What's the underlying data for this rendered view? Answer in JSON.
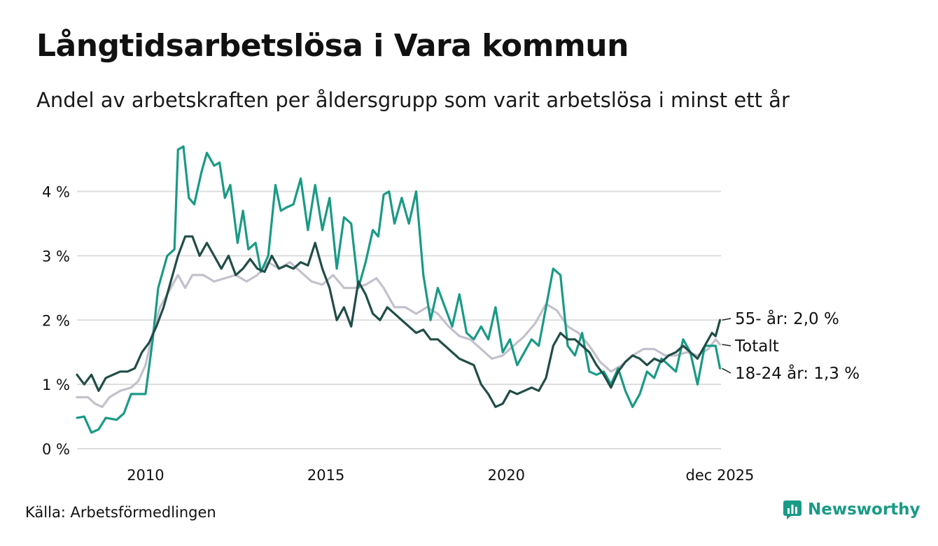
{
  "title": "Långtidsarbetslösa i Vara kommun",
  "subtitle": "Andel av arbetskraften per åldersgrupp som varit arbetslösa i minst ett år",
  "source": "Källa: Arbetsförmedlingen",
  "brand": "Newsworthy",
  "colors": {
    "total": "#c4c0cc",
    "young": "#1a9a86",
    "old": "#214d47",
    "grid": "#dddddd",
    "brand": "#1a9a86"
  },
  "chart_data": {
    "type": "line",
    "title": "Långtidsarbetslösa i Vara kommun",
    "xlabel": "",
    "ylabel": "",
    "x_range": [
      2008.1,
      2025.95
    ],
    "ylim": [
      0,
      4.8
    ],
    "y_ticks": [
      0,
      1,
      2,
      3,
      4
    ],
    "y_tick_labels": [
      "0 %",
      "1 %",
      "2 %",
      "3 %",
      "4 %"
    ],
    "x_ticks": [
      2010,
      2015,
      2020,
      2025.92
    ],
    "x_tick_labels": [
      "2010",
      "2015",
      "2020",
      "dec 2025"
    ],
    "grid": true,
    "series": [
      {
        "name": "Totalt",
        "label": "Totalt",
        "color": "#c4c0cc",
        "points": [
          [
            2008.1,
            0.8
          ],
          [
            2008.4,
            0.8
          ],
          [
            2008.6,
            0.7
          ],
          [
            2008.8,
            0.65
          ],
          [
            2009.0,
            0.8
          ],
          [
            2009.3,
            0.9
          ],
          [
            2009.6,
            0.95
          ],
          [
            2009.8,
            1.05
          ],
          [
            2010.0,
            1.3
          ],
          [
            2010.2,
            1.8
          ],
          [
            2010.4,
            2.2
          ],
          [
            2010.7,
            2.5
          ],
          [
            2010.9,
            2.7
          ],
          [
            2011.1,
            2.5
          ],
          [
            2011.3,
            2.7
          ],
          [
            2011.6,
            2.7
          ],
          [
            2011.9,
            2.6
          ],
          [
            2012.2,
            2.65
          ],
          [
            2012.5,
            2.7
          ],
          [
            2012.8,
            2.6
          ],
          [
            2013.1,
            2.7
          ],
          [
            2013.4,
            2.9
          ],
          [
            2013.7,
            2.8
          ],
          [
            2014.0,
            2.9
          ],
          [
            2014.3,
            2.75
          ],
          [
            2014.6,
            2.6
          ],
          [
            2014.9,
            2.55
          ],
          [
            2015.2,
            2.7
          ],
          [
            2015.5,
            2.5
          ],
          [
            2015.8,
            2.5
          ],
          [
            2016.1,
            2.55
          ],
          [
            2016.4,
            2.65
          ],
          [
            2016.6,
            2.5
          ],
          [
            2016.9,
            2.2
          ],
          [
            2017.2,
            2.2
          ],
          [
            2017.5,
            2.1
          ],
          [
            2017.8,
            2.2
          ],
          [
            2018.1,
            2.1
          ],
          [
            2018.4,
            1.9
          ],
          [
            2018.7,
            1.75
          ],
          [
            2019.0,
            1.7
          ],
          [
            2019.3,
            1.55
          ],
          [
            2019.6,
            1.4
          ],
          [
            2019.9,
            1.45
          ],
          [
            2020.2,
            1.6
          ],
          [
            2020.5,
            1.75
          ],
          [
            2020.8,
            1.95
          ],
          [
            2021.1,
            2.25
          ],
          [
            2021.4,
            2.15
          ],
          [
            2021.7,
            1.9
          ],
          [
            2022.0,
            1.8
          ],
          [
            2022.3,
            1.6
          ],
          [
            2022.6,
            1.35
          ],
          [
            2022.9,
            1.2
          ],
          [
            2023.2,
            1.3
          ],
          [
            2023.5,
            1.45
          ],
          [
            2023.8,
            1.55
          ],
          [
            2024.1,
            1.55
          ],
          [
            2024.4,
            1.45
          ],
          [
            2024.7,
            1.45
          ],
          [
            2025.0,
            1.5
          ],
          [
            2025.3,
            1.45
          ],
          [
            2025.6,
            1.55
          ],
          [
            2025.8,
            1.7
          ],
          [
            2025.92,
            1.62
          ]
        ]
      },
      {
        "name": "18-24 år",
        "label": "18-24 år: 1,3 %",
        "color": "#1a9a86",
        "points": [
          [
            2008.1,
            0.48
          ],
          [
            2008.3,
            0.5
          ],
          [
            2008.5,
            0.25
          ],
          [
            2008.7,
            0.3
          ],
          [
            2008.9,
            0.48
          ],
          [
            2009.2,
            0.45
          ],
          [
            2009.4,
            0.55
          ],
          [
            2009.6,
            0.85
          ],
          [
            2009.8,
            0.85
          ],
          [
            2010.0,
            0.85
          ],
          [
            2010.2,
            1.7
          ],
          [
            2010.35,
            2.5
          ],
          [
            2010.6,
            3.0
          ],
          [
            2010.8,
            3.1
          ],
          [
            2010.9,
            4.65
          ],
          [
            2011.05,
            4.7
          ],
          [
            2011.2,
            3.9
          ],
          [
            2011.35,
            3.8
          ],
          [
            2011.55,
            4.3
          ],
          [
            2011.7,
            4.6
          ],
          [
            2011.9,
            4.4
          ],
          [
            2012.05,
            4.45
          ],
          [
            2012.2,
            3.9
          ],
          [
            2012.35,
            4.1
          ],
          [
            2012.55,
            3.2
          ],
          [
            2012.7,
            3.7
          ],
          [
            2012.85,
            3.1
          ],
          [
            2013.05,
            3.2
          ],
          [
            2013.2,
            2.75
          ],
          [
            2013.4,
            3.0
          ],
          [
            2013.6,
            4.1
          ],
          [
            2013.75,
            3.7
          ],
          [
            2013.9,
            3.75
          ],
          [
            2014.1,
            3.8
          ],
          [
            2014.3,
            4.2
          ],
          [
            2014.5,
            3.4
          ],
          [
            2014.7,
            4.1
          ],
          [
            2014.9,
            3.4
          ],
          [
            2015.1,
            3.9
          ],
          [
            2015.3,
            2.8
          ],
          [
            2015.5,
            3.6
          ],
          [
            2015.7,
            3.5
          ],
          [
            2015.9,
            2.5
          ],
          [
            2016.1,
            2.9
          ],
          [
            2016.3,
            3.4
          ],
          [
            2016.45,
            3.3
          ],
          [
            2016.6,
            3.95
          ],
          [
            2016.75,
            4.0
          ],
          [
            2016.9,
            3.5
          ],
          [
            2017.1,
            3.9
          ],
          [
            2017.3,
            3.5
          ],
          [
            2017.5,
            4.0
          ],
          [
            2017.7,
            2.7
          ],
          [
            2017.9,
            2.0
          ],
          [
            2018.1,
            2.5
          ],
          [
            2018.3,
            2.2
          ],
          [
            2018.5,
            1.9
          ],
          [
            2018.7,
            2.4
          ],
          [
            2018.9,
            1.8
          ],
          [
            2019.1,
            1.7
          ],
          [
            2019.3,
            1.9
          ],
          [
            2019.5,
            1.7
          ],
          [
            2019.7,
            2.2
          ],
          [
            2019.9,
            1.5
          ],
          [
            2020.1,
            1.7
          ],
          [
            2020.3,
            1.3
          ],
          [
            2020.5,
            1.5
          ],
          [
            2020.7,
            1.7
          ],
          [
            2020.9,
            1.6
          ],
          [
            2021.1,
            2.2
          ],
          [
            2021.3,
            2.8
          ],
          [
            2021.5,
            2.7
          ],
          [
            2021.7,
            1.6
          ],
          [
            2021.9,
            1.45
          ],
          [
            2022.1,
            1.8
          ],
          [
            2022.3,
            1.2
          ],
          [
            2022.5,
            1.15
          ],
          [
            2022.7,
            1.2
          ],
          [
            2022.9,
            1.0
          ],
          [
            2023.1,
            1.25
          ],
          [
            2023.3,
            0.9
          ],
          [
            2023.5,
            0.65
          ],
          [
            2023.7,
            0.85
          ],
          [
            2023.9,
            1.2
          ],
          [
            2024.1,
            1.1
          ],
          [
            2024.3,
            1.4
          ],
          [
            2024.5,
            1.3
          ],
          [
            2024.7,
            1.2
          ],
          [
            2024.9,
            1.7
          ],
          [
            2025.1,
            1.5
          ],
          [
            2025.3,
            1.0
          ],
          [
            2025.5,
            1.6
          ],
          [
            2025.8,
            1.6
          ],
          [
            2025.92,
            1.25
          ]
        ]
      },
      {
        "name": "55- år",
        "label": "55- år: 2,0 %",
        "color": "#214d47",
        "points": [
          [
            2008.1,
            1.15
          ],
          [
            2008.3,
            1.0
          ],
          [
            2008.5,
            1.15
          ],
          [
            2008.7,
            0.9
          ],
          [
            2008.9,
            1.1
          ],
          [
            2009.1,
            1.15
          ],
          [
            2009.3,
            1.2
          ],
          [
            2009.5,
            1.2
          ],
          [
            2009.7,
            1.25
          ],
          [
            2009.9,
            1.5
          ],
          [
            2010.1,
            1.65
          ],
          [
            2010.3,
            1.9
          ],
          [
            2010.5,
            2.2
          ],
          [
            2010.7,
            2.6
          ],
          [
            2010.9,
            3.0
          ],
          [
            2011.1,
            3.3
          ],
          [
            2011.3,
            3.3
          ],
          [
            2011.5,
            3.0
          ],
          [
            2011.7,
            3.2
          ],
          [
            2011.9,
            3.0
          ],
          [
            2012.1,
            2.8
          ],
          [
            2012.3,
            3.0
          ],
          [
            2012.5,
            2.7
          ],
          [
            2012.7,
            2.8
          ],
          [
            2012.9,
            2.95
          ],
          [
            2013.1,
            2.8
          ],
          [
            2013.3,
            2.75
          ],
          [
            2013.5,
            3.0
          ],
          [
            2013.7,
            2.8
          ],
          [
            2013.9,
            2.85
          ],
          [
            2014.1,
            2.8
          ],
          [
            2014.3,
            2.9
          ],
          [
            2014.5,
            2.85
          ],
          [
            2014.7,
            3.2
          ],
          [
            2014.9,
            2.8
          ],
          [
            2015.1,
            2.5
          ],
          [
            2015.3,
            2.0
          ],
          [
            2015.5,
            2.2
          ],
          [
            2015.7,
            1.9
          ],
          [
            2015.9,
            2.6
          ],
          [
            2016.1,
            2.4
          ],
          [
            2016.3,
            2.1
          ],
          [
            2016.5,
            2.0
          ],
          [
            2016.7,
            2.2
          ],
          [
            2016.9,
            2.1
          ],
          [
            2017.1,
            2.0
          ],
          [
            2017.3,
            1.9
          ],
          [
            2017.5,
            1.8
          ],
          [
            2017.7,
            1.85
          ],
          [
            2017.9,
            1.7
          ],
          [
            2018.1,
            1.7
          ],
          [
            2018.3,
            1.6
          ],
          [
            2018.5,
            1.5
          ],
          [
            2018.7,
            1.4
          ],
          [
            2018.9,
            1.35
          ],
          [
            2019.1,
            1.3
          ],
          [
            2019.3,
            1.0
          ],
          [
            2019.5,
            0.85
          ],
          [
            2019.7,
            0.65
          ],
          [
            2019.9,
            0.7
          ],
          [
            2020.1,
            0.9
          ],
          [
            2020.3,
            0.85
          ],
          [
            2020.5,
            0.9
          ],
          [
            2020.7,
            0.95
          ],
          [
            2020.9,
            0.9
          ],
          [
            2021.1,
            1.1
          ],
          [
            2021.3,
            1.6
          ],
          [
            2021.5,
            1.8
          ],
          [
            2021.7,
            1.7
          ],
          [
            2021.9,
            1.7
          ],
          [
            2022.1,
            1.6
          ],
          [
            2022.3,
            1.5
          ],
          [
            2022.5,
            1.3
          ],
          [
            2022.7,
            1.15
          ],
          [
            2022.9,
            0.95
          ],
          [
            2023.1,
            1.2
          ],
          [
            2023.3,
            1.35
          ],
          [
            2023.5,
            1.45
          ],
          [
            2023.7,
            1.4
          ],
          [
            2023.9,
            1.3
          ],
          [
            2024.1,
            1.4
          ],
          [
            2024.3,
            1.35
          ],
          [
            2024.5,
            1.45
          ],
          [
            2024.7,
            1.5
          ],
          [
            2024.9,
            1.6
          ],
          [
            2025.1,
            1.5
          ],
          [
            2025.3,
            1.4
          ],
          [
            2025.5,
            1.6
          ],
          [
            2025.7,
            1.8
          ],
          [
            2025.8,
            1.75
          ],
          [
            2025.92,
            2.0
          ]
        ]
      }
    ]
  }
}
